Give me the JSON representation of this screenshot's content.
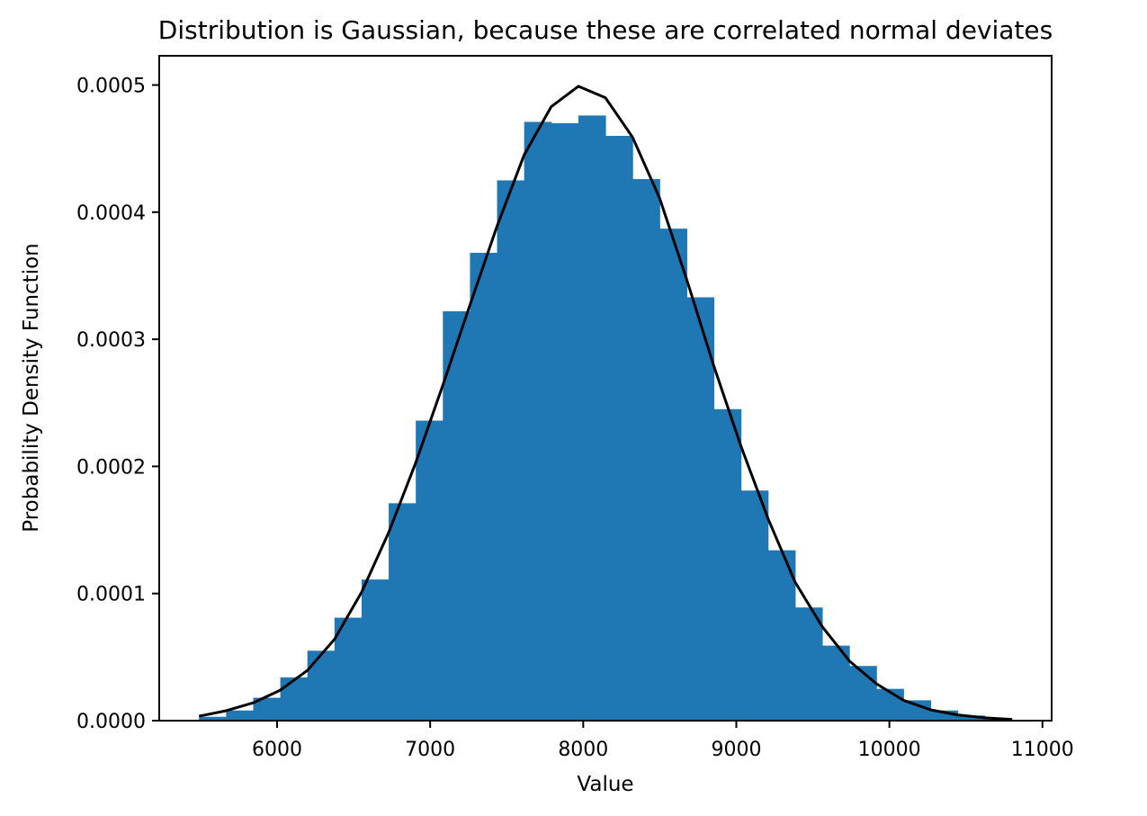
{
  "chart_data": {
    "type": "bar",
    "title": "Distribution is Gaussian, because these are correlated normal deviates",
    "xlabel": "Value",
    "ylabel": "Probability Density Function",
    "xlim": [
      5230,
      11060
    ],
    "ylim": [
      0,
      0.000523
    ],
    "grid": false,
    "x_ticks": [
      6000,
      7000,
      8000,
      9000,
      10000,
      11000
    ],
    "x_tick_labels": [
      "6000",
      "7000",
      "8000",
      "9000",
      "10000",
      "11000"
    ],
    "y_ticks": [
      0,
      0.0001,
      0.0002,
      0.0003,
      0.0004,
      0.0005
    ],
    "y_tick_labels": [
      "0.0000",
      "0.0001",
      "0.0002",
      "0.0003",
      "0.0004",
      "0.0005"
    ],
    "histogram": {
      "color": "#1f77b4",
      "bin_edges": [
        5490,
        5667,
        5844,
        6021,
        6198,
        6375,
        6552,
        6729,
        6906,
        7083,
        7260,
        7437,
        7614,
        7791,
        7968,
        8145,
        8322,
        8499,
        8676,
        8853,
        9030,
        9207,
        9384,
        9561,
        9738,
        9915,
        10092,
        10269,
        10446,
        10623,
        10800
      ],
      "values": [
        3e-06,
        8e-06,
        1.8e-05,
        3.4e-05,
        5.5e-05,
        8.1e-05,
        0.000111,
        0.000171,
        0.000236,
        0.000322,
        0.000368,
        0.000425,
        0.000471,
        0.00047,
        0.000476,
        0.00046,
        0.000426,
        0.000387,
        0.000333,
        0.000245,
        0.000181,
        0.000134,
        8.9e-05,
        5.9e-05,
        4.3e-05,
        2.5e-05,
        1.6e-05,
        8e-06,
        4e-06,
        2e-06
      ]
    },
    "series": [
      {
        "type": "line",
        "color": "#000000",
        "x": [
          5490,
          5667,
          5844,
          6021,
          6198,
          6375,
          6552,
          6729,
          6906,
          7083,
          7260,
          7437,
          7614,
          7791,
          7968,
          8145,
          8322,
          8499,
          8676,
          8853,
          9030,
          9207,
          9384,
          9561,
          9738,
          9915,
          10092,
          10269,
          10446,
          10623,
          10800
        ],
        "y": [
          3.5e-06,
          7.8e-06,
          1.4e-05,
          2.4e-05,
          3.95e-05,
          6.4e-05,
          0.000101,
          0.000148,
          0.000203,
          0.000264,
          0.000327,
          0.000389,
          0.000445,
          0.000483,
          0.000499,
          0.00049,
          0.000459,
          0.000411,
          0.000347,
          0.000279,
          0.000216,
          0.000159,
          0.000109,
          7.4e-05,
          4.7e-05,
          2.9e-05,
          1.6e-05,
          8.5e-06,
          4.5e-06,
          2.2e-06,
          1e-06
        ]
      }
    ]
  }
}
